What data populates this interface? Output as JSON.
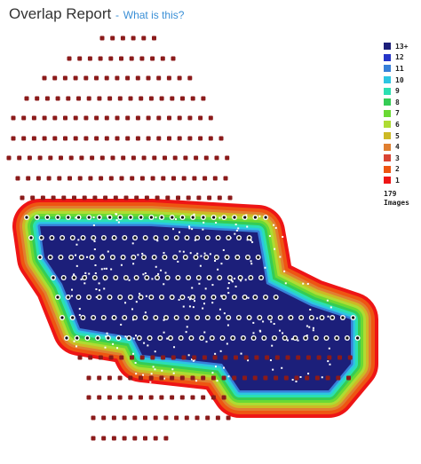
{
  "header": {
    "title": "Overlap Report",
    "link": "What is this?"
  },
  "legend": [
    {
      "label": "13+",
      "color": "#1c1f7a"
    },
    {
      "label": "12",
      "color": "#2535c8"
    },
    {
      "label": "11",
      "color": "#3780d8"
    },
    {
      "label": "10",
      "color": "#2cc6e2"
    },
    {
      "label": "9",
      "color": "#2be0b2"
    },
    {
      "label": "8",
      "color": "#35cc55"
    },
    {
      "label": "7",
      "color": "#6ad934"
    },
    {
      "label": "6",
      "color": "#aedc33"
    },
    {
      "label": "5",
      "color": "#cdb925"
    },
    {
      "label": "4",
      "color": "#e07f30"
    },
    {
      "label": "3",
      "color": "#d94433"
    },
    {
      "label": "2",
      "color": "#ee5512"
    },
    {
      "label": "1",
      "color": "#ee1515"
    }
  ],
  "images_count": "179",
  "images_label": "Images"
}
